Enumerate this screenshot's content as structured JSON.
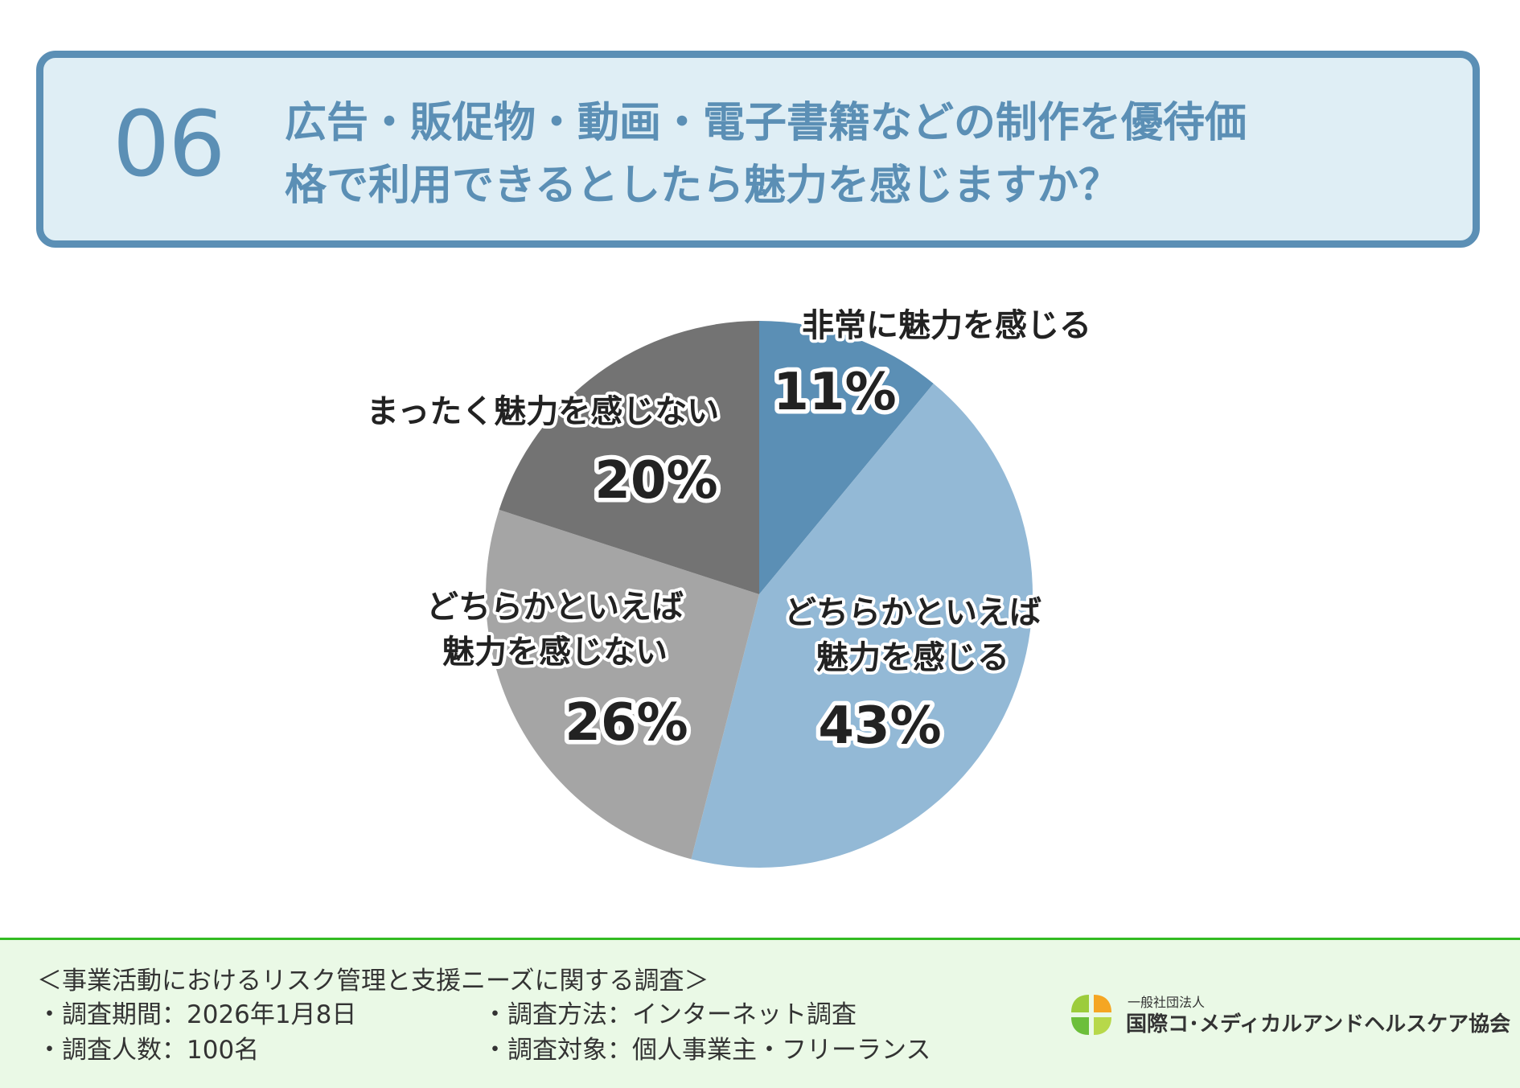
{
  "question": {
    "number": "06",
    "line1": "広告・販促物・動画・電子書籍などの制作を優待価",
    "line2": "格で利用できるとしたら魅力を感じますか？"
  },
  "colors": {
    "accent": "#5b8fb5",
    "box_bg": "#dfeef5",
    "footer_bg": "#eaf9e6",
    "footer_line": "#33bb22"
  },
  "chart_data": {
    "type": "pie",
    "start": "12 o'clock, clockwise",
    "slices": [
      {
        "label": "非常に魅力を感じる",
        "value": 11,
        "display": "11%",
        "color": "#5b8fb5"
      },
      {
        "label": "どちらかといえば魅力を感じる",
        "label_lines": [
          "どちらかといえば",
          "魅力を感じる"
        ],
        "value": 43,
        "display": "43%",
        "color": "#93b9d6"
      },
      {
        "label": "どちらかといえば魅力を感じない",
        "label_lines": [
          "どちらかといえば",
          "魅力を感じない"
        ],
        "value": 26,
        "display": "26%",
        "color": "#a5a5a5"
      },
      {
        "label": "まったく魅力を感じない",
        "value": 20,
        "display": "20%",
        "color": "#737373"
      }
    ]
  },
  "footer": {
    "survey_title": "＜事業活動におけるリスク管理と支援ニーズに関する調査＞",
    "period": "・調査期間：2026年1月8日",
    "method": "・調査方法：インターネット調査",
    "count": "・調査人数：100名",
    "target": "・調査対象：個人事業主・フリーランス",
    "org_prefix": "一般社団法人",
    "org_name": "国際コ･メディカルアンドヘルスケア協会"
  }
}
